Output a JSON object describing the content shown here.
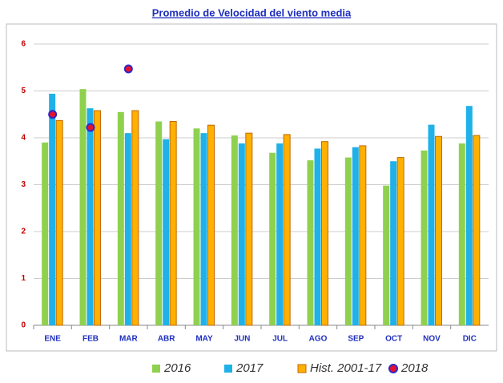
{
  "chart_data": {
    "type": "bar",
    "title": "Promedio de Velocidad del viento media",
    "categories": [
      "ENE",
      "FEB",
      "MAR",
      "ABR",
      "MAY",
      "JUN",
      "JUL",
      "AGO",
      "SEP",
      "OCT",
      "NOV",
      "DIC"
    ],
    "series": [
      {
        "name": "2016",
        "color": "#8fd14f",
        "values": [
          3.9,
          5.04,
          4.55,
          4.35,
          4.2,
          4.05,
          3.68,
          3.52,
          3.58,
          2.98,
          3.73,
          3.88
        ]
      },
      {
        "name": "2017",
        "color": "#1fb1e8",
        "values": [
          4.94,
          4.63,
          4.1,
          3.97,
          4.1,
          3.88,
          3.88,
          3.77,
          3.8,
          3.5,
          4.28,
          4.68
        ]
      },
      {
        "name": "Hist. 2001-17",
        "color": "#ffb000",
        "values": [
          4.37,
          4.58,
          4.58,
          4.35,
          4.27,
          4.1,
          4.07,
          3.92,
          3.83,
          3.58,
          4.03,
          4.05
        ]
      },
      {
        "name": "2018",
        "type": "scatter",
        "color": "#e8112d",
        "values": [
          4.5,
          4.22,
          5.47,
          null,
          null,
          null,
          null,
          null,
          null,
          null,
          null,
          null
        ]
      }
    ],
    "ylim": [
      0,
      6
    ],
    "yticks": [
      0,
      1,
      2,
      3,
      4,
      5,
      6
    ],
    "grid": true
  }
}
